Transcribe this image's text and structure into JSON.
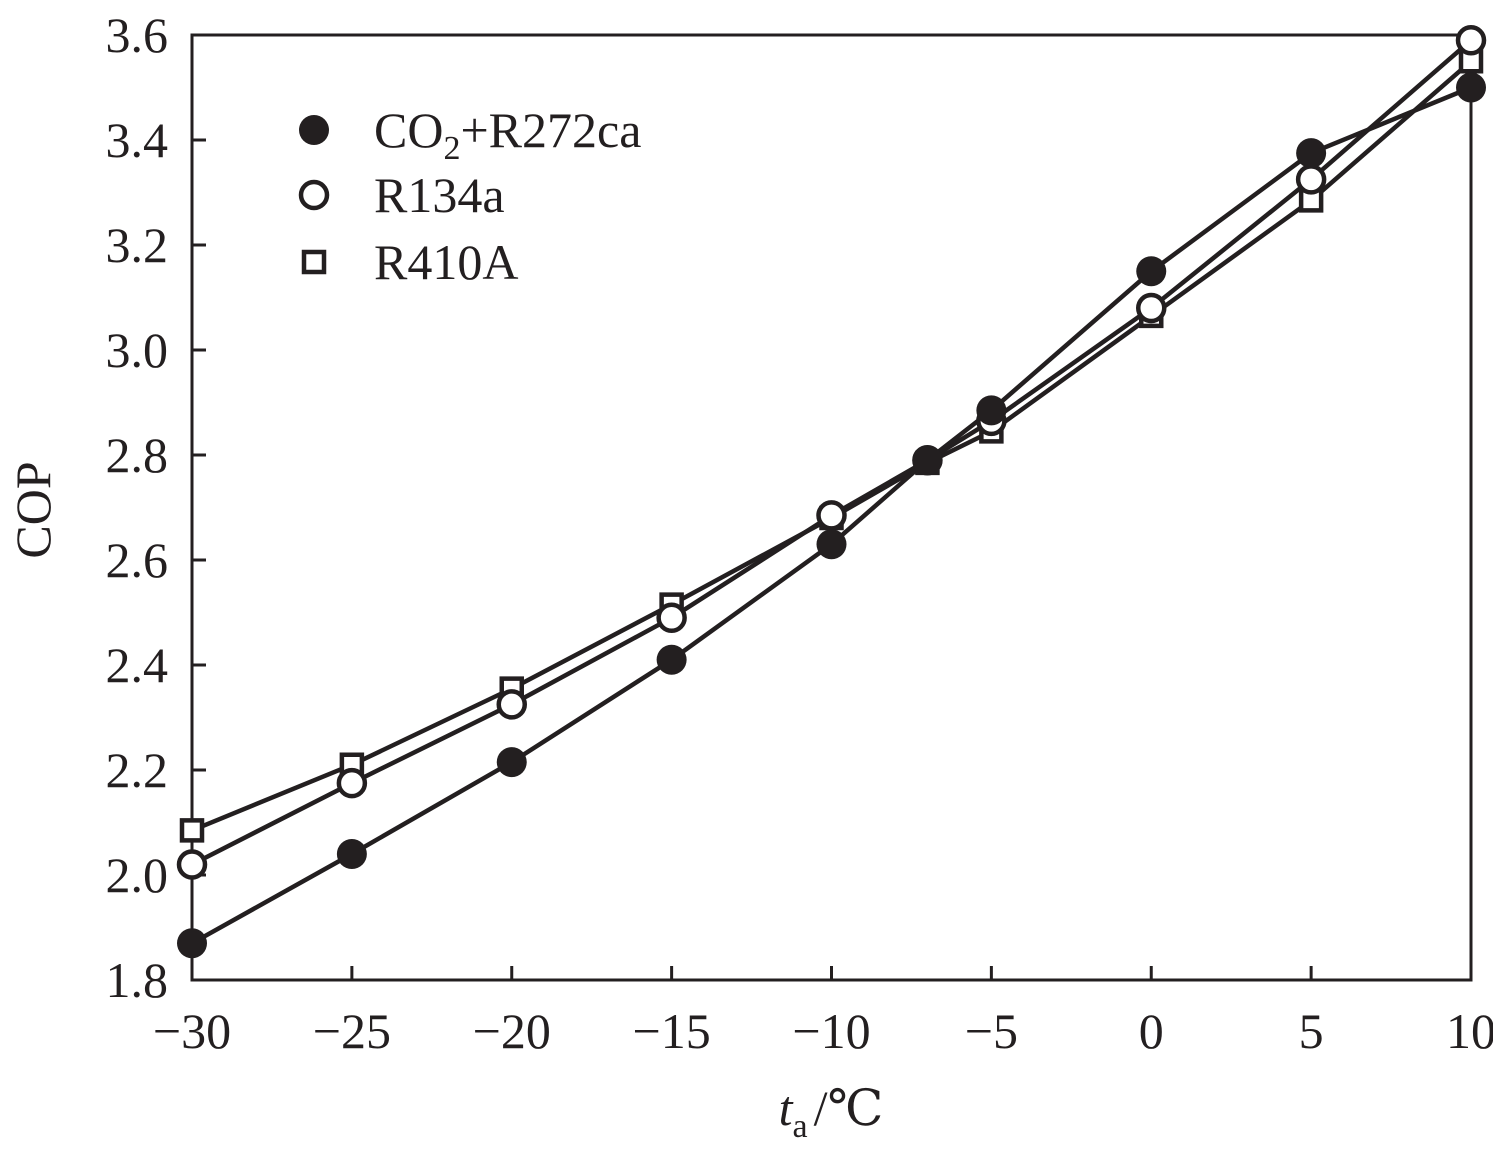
{
  "chart_data": {
    "type": "line",
    "title": "",
    "xlabel": "t_a/℃",
    "xlabel_parts": {
      "var": "t",
      "sub": "a",
      "unit": "/℃"
    },
    "ylabel": "COP",
    "xlim": [
      -30,
      10
    ],
    "ylim": [
      1.8,
      3.6
    ],
    "x_ticks": [
      -30,
      -25,
      -20,
      -15,
      -10,
      -5,
      0,
      5,
      10
    ],
    "x_tick_labels": [
      "−30",
      "−25",
      "−20",
      "−15",
      "−10",
      "−5",
      "0",
      "5",
      "10"
    ],
    "y_ticks": [
      1.8,
      2.0,
      2.2,
      2.4,
      2.6,
      2.8,
      3.0,
      3.2,
      3.4,
      3.6
    ],
    "y_tick_labels": [
      "1.8",
      "2.0",
      "2.2",
      "2.4",
      "2.6",
      "2.8",
      "3.0",
      "3.2",
      "3.4",
      "3.6"
    ],
    "grid": false,
    "legend_position": "top-left",
    "line_color": "#231f20",
    "series": [
      {
        "name": "CO2+R272ca",
        "legend_main": "CO",
        "legend_sub": "2",
        "legend_rest": "+R272ca",
        "marker": "filled-circle",
        "x": [
          -30,
          -25,
          -20,
          -15,
          -10,
          -7,
          -5,
          0,
          5,
          10
        ],
        "y": [
          1.87,
          2.04,
          2.215,
          2.41,
          2.63,
          2.79,
          2.885,
          3.15,
          3.375,
          3.5
        ]
      },
      {
        "name": "R134a",
        "legend_main": "R134a",
        "marker": "open-circle",
        "x": [
          -30,
          -25,
          -20,
          -15,
          -10,
          -7,
          -5,
          0,
          5,
          10
        ],
        "y": [
          2.02,
          2.175,
          2.325,
          2.49,
          2.685,
          2.79,
          2.865,
          3.08,
          3.325,
          3.59
        ]
      },
      {
        "name": "R410A",
        "legend_main": "R410A",
        "marker": "open-square",
        "x": [
          -30,
          -25,
          -20,
          -15,
          -10,
          -7,
          -5,
          0,
          5,
          10
        ],
        "y": [
          2.085,
          2.21,
          2.355,
          2.515,
          2.68,
          2.785,
          2.845,
          3.065,
          3.285,
          3.55
        ]
      }
    ]
  }
}
